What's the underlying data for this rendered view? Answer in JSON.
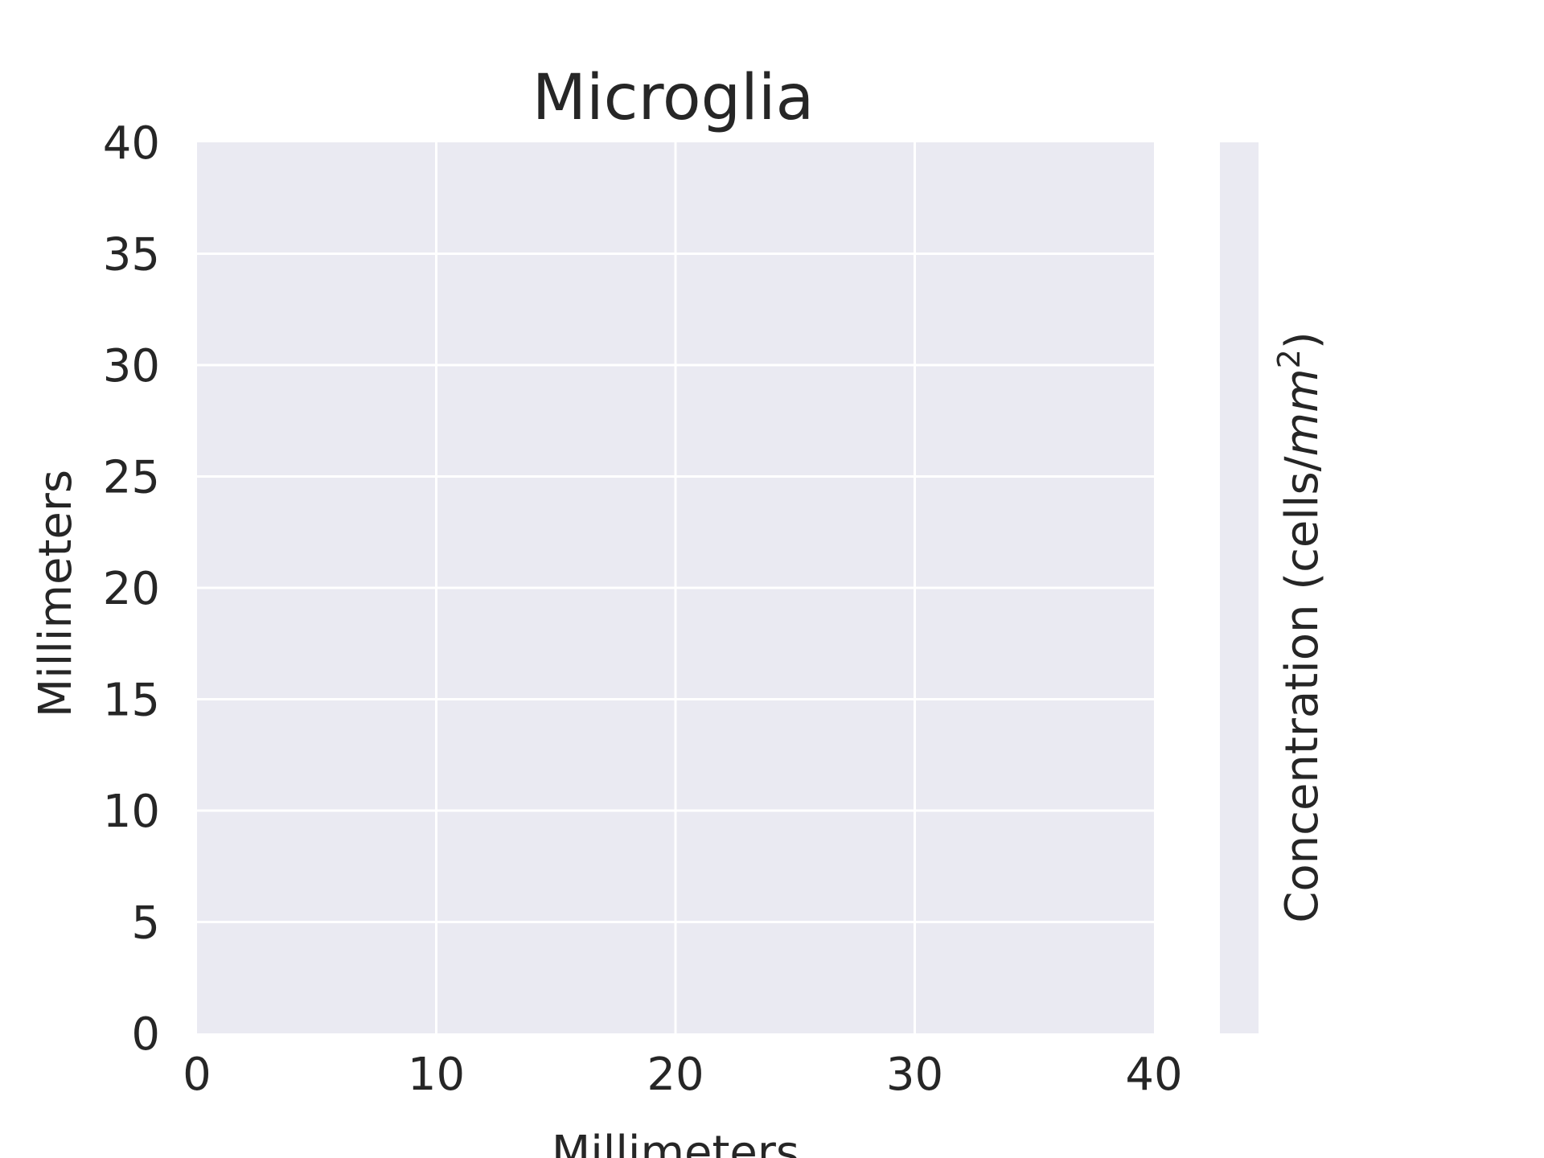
{
  "chart_data": {
    "type": "heatmap",
    "title": "Microglia",
    "xlabel": "Millimeters",
    "ylabel": "Millimeters",
    "xlim": [
      0,
      40
    ],
    "ylim": [
      0,
      40
    ],
    "x_ticks": [
      0,
      10,
      20,
      30,
      40
    ],
    "y_ticks": [
      0,
      5,
      10,
      15,
      20,
      25,
      30,
      35,
      40
    ],
    "x_tick_labels": [
      "0",
      "10",
      "20",
      "30",
      "40"
    ],
    "y_tick_labels": [
      "0",
      "5",
      "10",
      "15",
      "20",
      "25",
      "30",
      "35",
      "40"
    ],
    "grid": true,
    "values": [],
    "colorbar": {
      "label_prefix": "Concentration (cells/",
      "label_unit": "mm",
      "label_exponent": "2",
      "label_suffix": ")"
    }
  },
  "colors": {
    "plot_background": "#eaeaf2",
    "grid": "#ffffff",
    "text": "#262626"
  }
}
